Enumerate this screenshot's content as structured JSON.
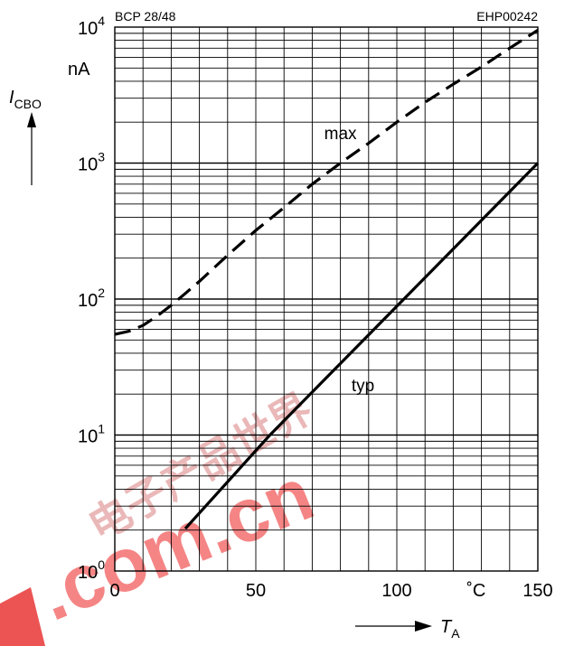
{
  "chart_data": {
    "type": "line",
    "header_left": "BCP 28/48",
    "header_right": "EHP00242",
    "ylabel": {
      "symbol": "I",
      "subscript": "CBO"
    },
    "yunit": "nA",
    "xlabel": {
      "symbol": "T",
      "subscript": "A"
    },
    "xunit": "˚C",
    "y_scale": "log",
    "ylim": [
      1,
      10000
    ],
    "xlim": [
      0,
      150
    ],
    "grid": true,
    "x_ticks": [
      {
        "value": 0,
        "label": "0"
      },
      {
        "value": 50,
        "label": "50"
      },
      {
        "value": 100,
        "label": "100"
      },
      {
        "value": 150,
        "label": "150"
      }
    ],
    "y_ticks": [
      {
        "value": 1,
        "base": "10",
        "exp": "0"
      },
      {
        "value": 10,
        "base": "10",
        "exp": "1"
      },
      {
        "value": 100,
        "base": "10",
        "exp": "2"
      },
      {
        "value": 1000,
        "base": "10",
        "exp": "3"
      },
      {
        "value": 10000,
        "base": "10",
        "exp": "4"
      }
    ],
    "series": [
      {
        "name": "max",
        "style": "dashed",
        "points": [
          [
            0,
            55
          ],
          [
            5,
            58
          ],
          [
            10,
            64
          ],
          [
            15,
            75
          ],
          [
            20,
            90
          ],
          [
            25,
            110
          ],
          [
            30,
            135
          ],
          [
            40,
            210
          ],
          [
            50,
            320
          ],
          [
            60,
            470
          ],
          [
            70,
            700
          ],
          [
            80,
            1000
          ],
          [
            90,
            1400
          ],
          [
            100,
            2000
          ],
          [
            110,
            2800
          ],
          [
            120,
            3800
          ],
          [
            130,
            5100
          ],
          [
            140,
            7000
          ],
          [
            150,
            9500
          ]
        ]
      },
      {
        "name": "typ",
        "style": "solid",
        "points": [
          [
            25,
            2.05
          ],
          [
            55,
            10
          ],
          [
            150,
            1000
          ]
        ]
      }
    ]
  },
  "watermark": {
    "text": ".com.cn",
    "glyphs": "电子产品世界",
    "text_color": "#ee3333",
    "glyph_color": "#d06060"
  }
}
